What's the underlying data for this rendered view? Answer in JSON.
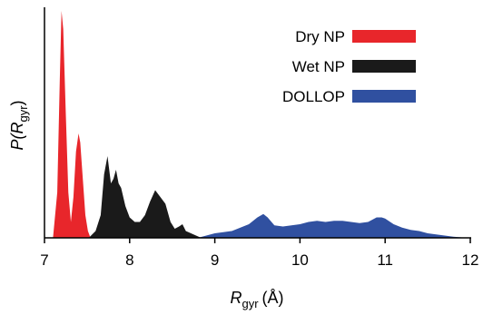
{
  "chart_data": {
    "type": "area",
    "xlabel": {
      "main": "R",
      "sub": "gyr",
      "unit": "(Å)"
    },
    "ylabel": {
      "pre": "P(",
      "main": "R",
      "sub": "gyr",
      "post": ")"
    },
    "xlim": [
      7,
      12
    ],
    "ylim": [
      0,
      1
    ],
    "xticks": [
      7,
      8,
      9,
      10,
      11,
      12
    ],
    "xtick_labels": [
      "7",
      "8",
      "9",
      "10",
      "11",
      "12"
    ],
    "yticks_shown": false,
    "legend_position": "top-right",
    "series": [
      {
        "name": "Dry NP",
        "color": "#e8262b",
        "x": [
          7.1,
          7.15,
          7.18,
          7.2,
          7.22,
          7.25,
          7.28,
          7.31,
          7.34,
          7.37,
          7.4,
          7.42,
          7.45,
          7.48,
          7.51,
          7.54
        ],
        "y": [
          0.0,
          0.2,
          0.7,
          1.0,
          0.92,
          0.55,
          0.2,
          0.07,
          0.18,
          0.38,
          0.46,
          0.42,
          0.26,
          0.1,
          0.03,
          0.0
        ]
      },
      {
        "name": "Wet NP",
        "color": "#1a1a1a",
        "x": [
          7.52,
          7.6,
          7.66,
          7.7,
          7.74,
          7.78,
          7.81,
          7.84,
          7.87,
          7.9,
          7.95,
          8.0,
          8.06,
          8.12,
          8.18,
          8.24,
          8.3,
          8.36,
          8.42,
          8.48,
          8.53,
          8.58,
          8.62,
          8.66,
          8.72,
          8.78,
          8.84
        ],
        "y": [
          0.0,
          0.03,
          0.1,
          0.28,
          0.36,
          0.24,
          0.26,
          0.3,
          0.24,
          0.22,
          0.14,
          0.09,
          0.07,
          0.07,
          0.1,
          0.16,
          0.21,
          0.18,
          0.15,
          0.07,
          0.04,
          0.05,
          0.06,
          0.03,
          0.02,
          0.01,
          0.0
        ]
      },
      {
        "name": "DOLLOP",
        "color": "#3050a0",
        "x": [
          8.8,
          8.9,
          9.0,
          9.1,
          9.2,
          9.3,
          9.4,
          9.5,
          9.57,
          9.62,
          9.7,
          9.8,
          9.9,
          10.0,
          10.1,
          10.2,
          10.3,
          10.4,
          10.5,
          10.6,
          10.7,
          10.8,
          10.9,
          10.96,
          11.0,
          11.1,
          11.2,
          11.3,
          11.4,
          11.5,
          11.6,
          11.7,
          11.8,
          11.9,
          12.0
        ],
        "y": [
          0.0,
          0.01,
          0.02,
          0.025,
          0.03,
          0.045,
          0.06,
          0.09,
          0.105,
          0.09,
          0.055,
          0.05,
          0.055,
          0.06,
          0.07,
          0.075,
          0.07,
          0.075,
          0.075,
          0.07,
          0.065,
          0.07,
          0.09,
          0.09,
          0.085,
          0.06,
          0.045,
          0.035,
          0.03,
          0.02,
          0.015,
          0.01,
          0.005,
          0.002,
          0.0
        ]
      }
    ]
  }
}
